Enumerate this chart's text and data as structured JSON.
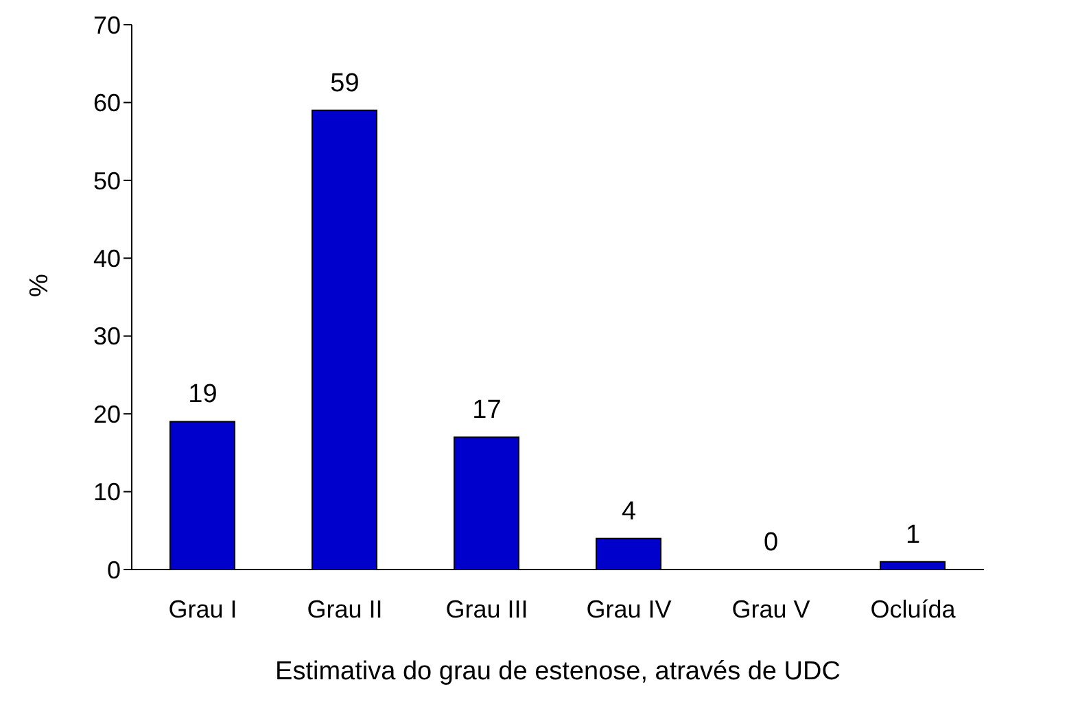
{
  "chart_data": {
    "type": "bar",
    "xlabel": "Estimativa do grau de estenose, através de UDC",
    "ylabel": "%",
    "categories": [
      "Grau I",
      "Grau II",
      "Grau III",
      "Grau IV",
      "Grau V",
      "Ocluída"
    ],
    "values": [
      19,
      59,
      17,
      4,
      0,
      1
    ],
    "color": "#0000cc",
    "ylim": [
      0,
      70
    ],
    "yticks": [
      0,
      10,
      20,
      30,
      40,
      50,
      60,
      70
    ],
    "grid": false,
    "legend": false,
    "data_labels": true
  }
}
